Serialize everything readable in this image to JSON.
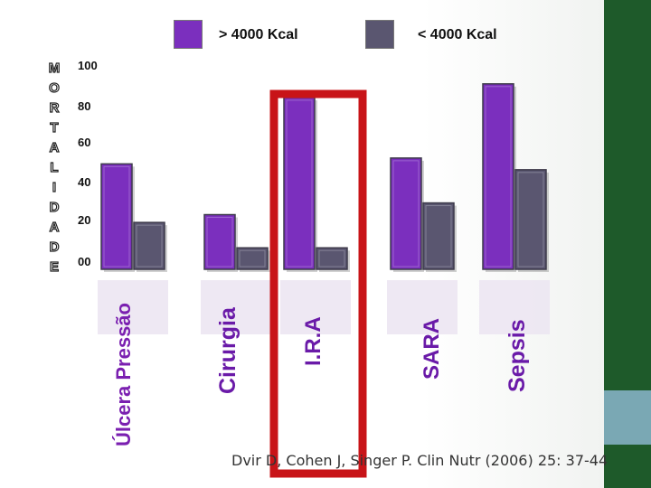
{
  "legend": {
    "high": {
      "label": "> 4000 Kcal",
      "color": "#7b2fbe"
    },
    "low": {
      "label": "< 4000 Kcal",
      "color": "#5a5670"
    }
  },
  "side_letters": [
    "M",
    "O",
    "R",
    "T",
    "A",
    "L",
    "I",
    "D",
    "A",
    "D",
    "E"
  ],
  "citation": "Dvir D, Cohen J, Singer P. Clin Nutr (2006) 25: 37-44",
  "colors": {
    "highlight": "#c81418",
    "sidebar": "#1e5a2a",
    "sidebar_square": "#7aa8b4"
  },
  "chart_data": {
    "type": "bar",
    "categories": [
      "Úlcera Pressão",
      "Cirurgia",
      "I.R.A",
      "SARA",
      "Sepsis"
    ],
    "series": [
      {
        "name": "> 4000 Kcal",
        "values": [
          54,
          28,
          88,
          57,
          95
        ]
      },
      {
        "name": "< 4000 Kcal",
        "values": [
          24,
          11,
          11,
          34,
          51
        ]
      }
    ],
    "tick_labels": [
      "00",
      "20",
      "40",
      "60",
      "80",
      "100"
    ],
    "ylabel": "MORTALIDADE",
    "ylim": [
      0,
      100
    ],
    "highlighted_category": "I.R.A",
    "grid": false
  }
}
